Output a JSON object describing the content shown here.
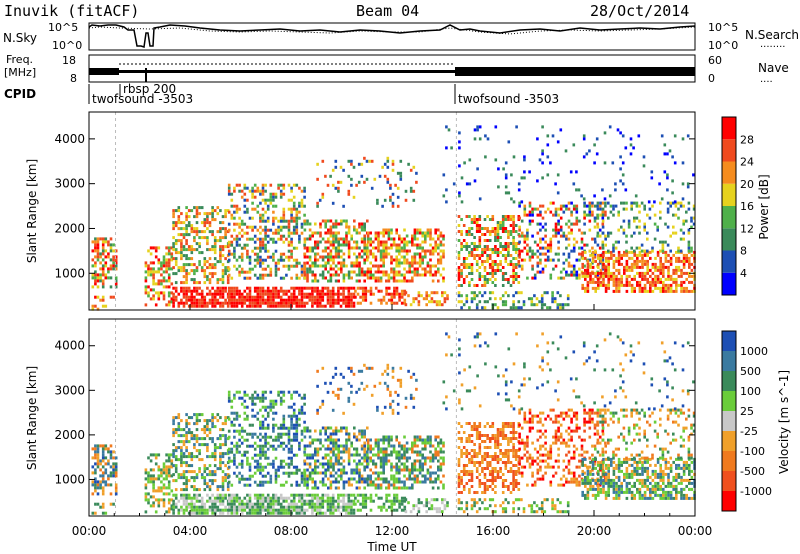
{
  "header": {
    "station": "Inuvik (fitACF)",
    "beam": "Beam 04",
    "date": "28/Oct/2014"
  },
  "strip_labels": {
    "nsky": "N.Sky",
    "nsearch": "N.Search",
    "nsearch_dots": "........",
    "freq_line1": "Freq.",
    "freq_line2": "[MHz]",
    "nave": "Nave",
    "nave_dots": "....",
    "cpid": "CPID"
  },
  "strip_ticks": {
    "nsky_left": [
      "10^5",
      "10^0"
    ],
    "nsky_right": [
      "10^5",
      "10^0"
    ],
    "freq_left": [
      "18",
      "8"
    ],
    "freq_right": [
      "60",
      "0"
    ]
  },
  "cpid_labels": [
    {
      "text": "twofsound -3503",
      "hour": 0.0
    },
    {
      "text": "rbsp 200",
      "hour": 1.05
    },
    {
      "text": "twofsound -3503",
      "hour": 14.55
    }
  ],
  "colors": {
    "power": [
      "#0000ff",
      "#1d4fb4",
      "#3a8a5a",
      "#4fb04a",
      "#e6d21e",
      "#f58c1e",
      "#f04a1e",
      "#ff0000"
    ],
    "velocity_pos": [
      "#1d4fb4",
      "#3a7aa0",
      "#3a8a5a",
      "#6acc3a"
    ],
    "velocity_neg": [
      "#c8c8c8",
      "#f0a02a",
      "#f07a1e",
      "#f0501e",
      "#ff0000"
    ]
  },
  "chart_data": [
    {
      "type": "heatmap",
      "title": "",
      "xlabel": "",
      "ylabel": "Slant Range [km]",
      "xlim": [
        0,
        24
      ],
      "ylim": [
        180,
        4600
      ],
      "yticks": [
        1000,
        2000,
        3000,
        4000
      ],
      "colorbar_label": "Power [dB]",
      "colorbar_ticks": [
        "4",
        "8",
        "12",
        "16",
        "20",
        "24",
        "28"
      ],
      "grid": false
    },
    {
      "type": "heatmap",
      "title": "",
      "xlabel": "Time UT",
      "ylabel": "Slant Range [km]",
      "xlim": [
        0,
        24
      ],
      "ylim": [
        180,
        4600
      ],
      "yticks": [
        1000,
        2000,
        3000,
        4000
      ],
      "xticks": [
        "00:00",
        "04:00",
        "08:00",
        "12:00",
        "16:00",
        "20:00",
        "00:00"
      ],
      "colorbar_label": "Velocity [m s^-1]",
      "colorbar_ticks": [
        "1000",
        "500",
        "100",
        "25",
        "-25",
        "-100",
        "-500",
        "-1000"
      ],
      "grid": false
    }
  ]
}
